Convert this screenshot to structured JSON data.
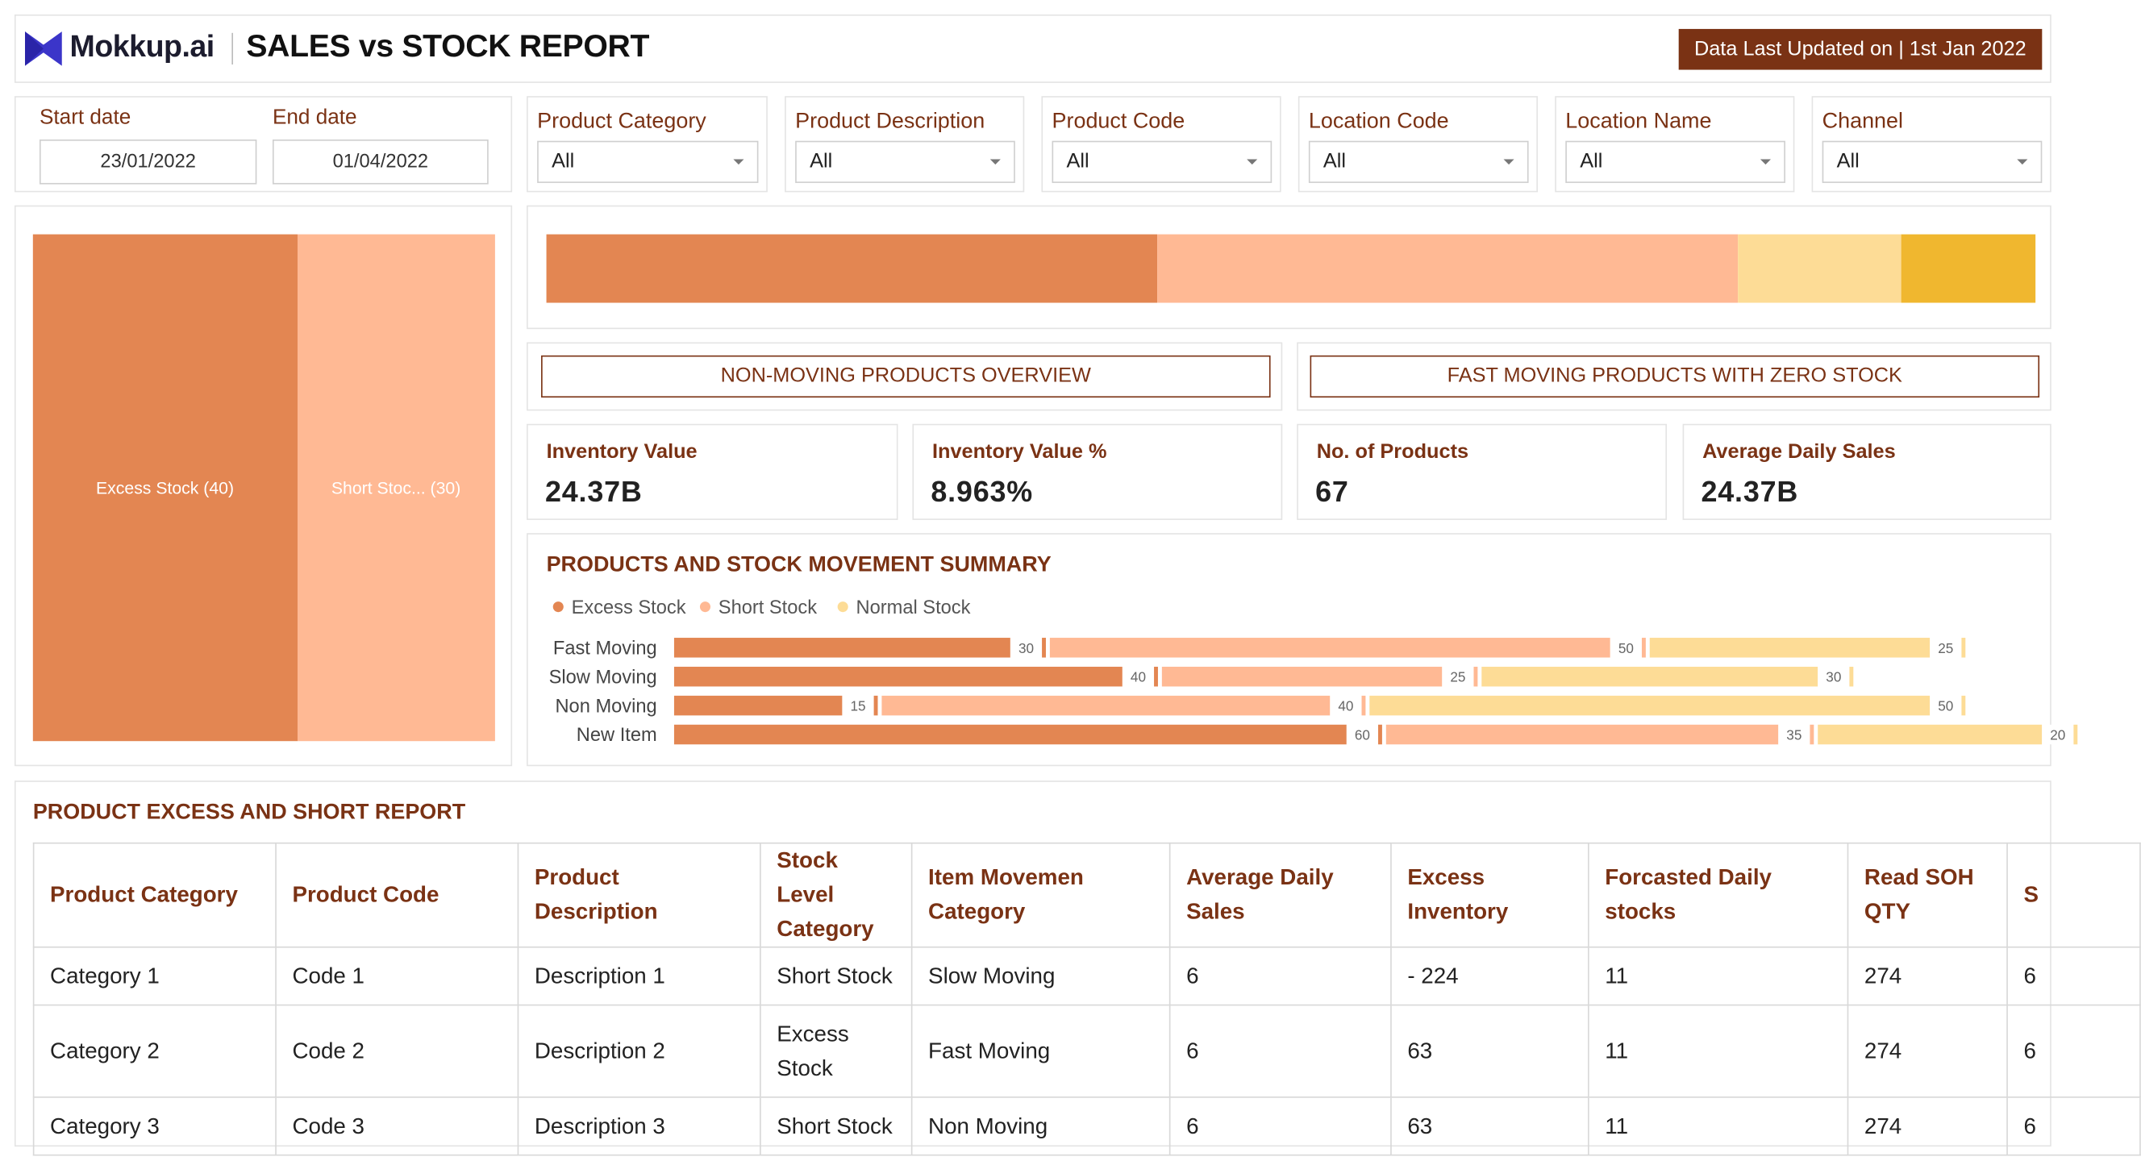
{
  "header": {
    "brand": "Mokkup.ai",
    "title": "SALES vs STOCK REPORT",
    "updated": "Data Last Updated on | 1st Jan 2022"
  },
  "dates": {
    "start_label": "Start date",
    "start_value": "23/01/2022",
    "end_label": "End date",
    "end_value": "01/04/2022"
  },
  "filters": [
    {
      "label": "Product Category",
      "value": "All"
    },
    {
      "label": "Product Description",
      "value": "All"
    },
    {
      "label": "Product Code",
      "value": "All"
    },
    {
      "label": "Location Code",
      "value": "All"
    },
    {
      "label": "Location Name",
      "value": "All"
    },
    {
      "label": "Channel",
      "value": "All"
    }
  ],
  "treemap": {
    "items": [
      {
        "label": "Excess Stock (40)",
        "value": 40,
        "color": "#e38652"
      },
      {
        "label": "Short Stoc... (30)",
        "value": 30,
        "color": "#ffb994"
      }
    ]
  },
  "stack_bar": {
    "segments": [
      {
        "value": 41,
        "color": "#e38652"
      },
      {
        "value": 39,
        "color": "#ffb994"
      },
      {
        "value": 11,
        "color": "#fddc96"
      },
      {
        "value": 9,
        "color": "#f0b72f"
      }
    ]
  },
  "sections": {
    "non_moving": "NON-MOVING PRODUCTS OVERVIEW",
    "fast_moving": "FAST MOVING PRODUCTS WITH ZERO STOCK"
  },
  "kpis": [
    {
      "label": "Inventory Value",
      "value": "24.37B"
    },
    {
      "label": "Inventory Value %",
      "value": "8.963%"
    },
    {
      "label": "No. of Products",
      "value": "67"
    },
    {
      "label": "Average Daily Sales",
      "value": "24.37B"
    }
  ],
  "movement_chart": {
    "title": "PRODUCTS AND STOCK MOVEMENT SUMMARY"
  },
  "chart_data": {
    "type": "bar",
    "orientation": "horizontal",
    "stacked": true,
    "title": "PRODUCTS AND STOCK MOVEMENT SUMMARY",
    "legend_position": "top-left",
    "categories": [
      "Fast Moving",
      "Slow Moving",
      "Non Moving",
      "New Item"
    ],
    "series": [
      {
        "name": "Excess Stock",
        "color": "#e38652",
        "values": [
          30,
          40,
          15,
          60
        ]
      },
      {
        "name": "Short Stock",
        "color": "#ffb994",
        "values": [
          50,
          25,
          40,
          35
        ]
      },
      {
        "name": "Normal Stock",
        "color": "#fddc96",
        "values": [
          25,
          30,
          50,
          20
        ]
      }
    ],
    "xlim": [
      0,
      121
    ]
  },
  "report": {
    "title": "PRODUCT EXCESS AND SHORT REPORT",
    "columns": [
      "Product Category",
      "Product Code",
      "Product Description",
      "Stock Level Category",
      "Item Movemen Category",
      "Average Daily Sales",
      "Excess Inventory",
      "Forcasted Daily stocks",
      "Read SOH QTY",
      "S"
    ],
    "rows": [
      [
        "Category 1",
        "Code 1",
        "Description 1",
        "Short Stock",
        "Slow Moving",
        "6",
        "- 224",
        "11",
        "274",
        "6"
      ],
      [
        "Category 2",
        "Code 2",
        "Description 2",
        "Excess Stock",
        "Fast Moving",
        "6",
        "63",
        "11",
        "274",
        "6"
      ],
      [
        "Category 3",
        "Code 3",
        "Description 3",
        "Short Stock",
        "Non Moving",
        "6",
        "63",
        "11",
        "274",
        "6"
      ]
    ]
  }
}
